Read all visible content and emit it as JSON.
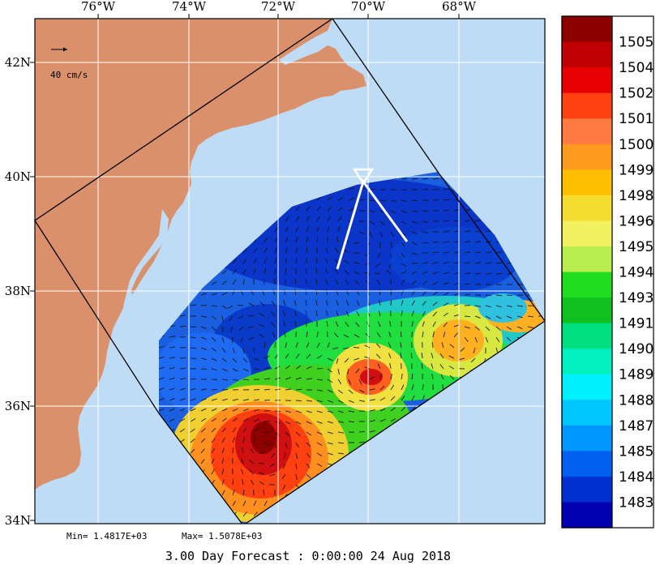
{
  "map": {
    "lon_labels": [
      "76°W",
      "74°W",
      "72°W",
      "70°W",
      "68°W"
    ],
    "lat_labels": [
      "42N",
      "40N",
      "38N",
      "36N",
      "34N"
    ],
    "scale_label": "40 cm/s",
    "stats": {
      "min_label": "Min= 1.4817E+03",
      "max_label": "Max= 1.5078E+03"
    },
    "forecast_title": "3.00 Day Forecast :  0:00:00  24 Aug 2018",
    "colors": {
      "ocean": "#bfdcf7",
      "land": "#d9906b",
      "grid": "#ffffff",
      "domain": "#000000"
    }
  },
  "colorbar": {
    "labels": [
      "1505",
      "1504",
      "1502",
      "1501",
      "1500",
      "1499",
      "1498",
      "1496",
      "1495",
      "1494",
      "1493",
      "1491",
      "1490",
      "1489",
      "1488",
      "1487",
      "1485",
      "1484",
      "1483"
    ],
    "colors": [
      "#8c0000",
      "#c00000",
      "#e80000",
      "#ff4010",
      "#ff7a40",
      "#ff9a20",
      "#ffbe00",
      "#f5dc30",
      "#f0f060",
      "#b8ee50",
      "#20dd20",
      "#10c020",
      "#00e080",
      "#00f0c0",
      "#00f0ff",
      "#00c8ff",
      "#0098ff",
      "#0060f0",
      "#0030d0",
      "#0000b0"
    ]
  }
}
